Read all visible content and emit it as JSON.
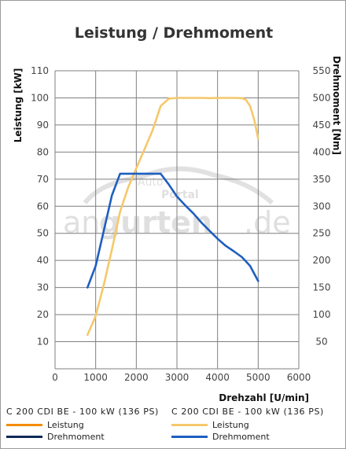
{
  "watermark": {
    "word_1": "an",
    "word_2": "gurten",
    "domain": ".de",
    "sub_1": "Auto",
    "sub_2": "Portal"
  },
  "chart_data": {
    "type": "line",
    "title": "Leistung / Drehmoment",
    "xlabel": "Drehzahl [U/min]",
    "ylabel_left": "Leistung [kW]",
    "ylabel_right": "Drehmoment [Nm]",
    "xlim": [
      0,
      6000
    ],
    "ylim_left": [
      0,
      110
    ],
    "ylim_right": [
      0,
      550
    ],
    "x_ticks": [
      "0",
      "1000",
      "2000",
      "3000",
      "4000",
      "5000",
      "6000"
    ],
    "y_ticks_left": [
      "10",
      "20",
      "30",
      "40",
      "50",
      "60",
      "70",
      "80",
      "90",
      "100",
      "110"
    ],
    "y_ticks_right": [
      "50",
      "100",
      "150",
      "200",
      "250",
      "300",
      "350",
      "400",
      "450",
      "500",
      "550"
    ],
    "grid": true,
    "series": [
      {
        "name": "Leistung",
        "axis": "left",
        "color": "#f5c86a",
        "points": [
          [
            800,
            12.5
          ],
          [
            1000,
            19.5
          ],
          [
            1200,
            31
          ],
          [
            1400,
            44
          ],
          [
            1600,
            58
          ],
          [
            1800,
            67
          ],
          [
            2000,
            74
          ],
          [
            2200,
            81
          ],
          [
            2400,
            88
          ],
          [
            2600,
            97
          ],
          [
            2800,
            99.7
          ],
          [
            3000,
            100
          ],
          [
            3200,
            100
          ],
          [
            3400,
            100
          ],
          [
            3600,
            100
          ],
          [
            3800,
            99.9
          ],
          [
            4000,
            100
          ],
          [
            4200,
            100
          ],
          [
            4400,
            100
          ],
          [
            4600,
            99.9
          ],
          [
            4700,
            99.3
          ],
          [
            4800,
            97
          ],
          [
            4900,
            92
          ],
          [
            5000,
            85
          ]
        ]
      },
      {
        "name": "Drehmoment",
        "axis": "right",
        "color": "#1e5fbf",
        "points": [
          [
            800,
            150
          ],
          [
            1000,
            190
          ],
          [
            1200,
            255
          ],
          [
            1400,
            320
          ],
          [
            1600,
            360
          ],
          [
            1800,
            360
          ],
          [
            2000,
            360
          ],
          [
            2200,
            360
          ],
          [
            2400,
            360
          ],
          [
            2600,
            360
          ],
          [
            2800,
            340
          ],
          [
            3000,
            318
          ],
          [
            3200,
            302
          ],
          [
            3400,
            287
          ],
          [
            3600,
            270
          ],
          [
            3800,
            255
          ],
          [
            4000,
            240
          ],
          [
            4200,
            227
          ],
          [
            4400,
            217
          ],
          [
            4600,
            206
          ],
          [
            4800,
            190
          ],
          [
            5000,
            162
          ]
        ]
      }
    ]
  },
  "legend": {
    "left": {
      "header": "C 200 CDI BE - 100 kW (136 PS)",
      "items": [
        {
          "label": "Leistung",
          "color": "#f28c00"
        },
        {
          "label": "Drehmoment",
          "color": "#0c2a55"
        }
      ]
    },
    "right": {
      "header": "C 200 CDI BE - 100 kW (136 PS)",
      "items": [
        {
          "label": "Leistung",
          "color": "#f5c86a"
        },
        {
          "label": "Drehmoment",
          "color": "#1e5fbf"
        }
      ]
    }
  }
}
